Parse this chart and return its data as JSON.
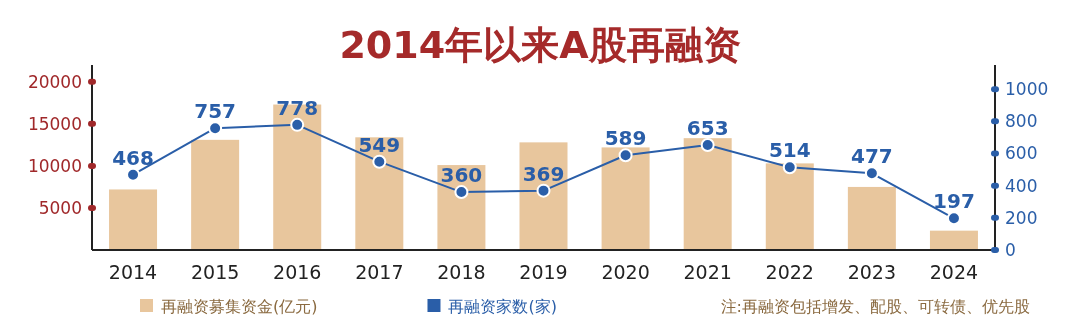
{
  "chart_data": {
    "type": "bar",
    "title": "2014年以来A股再融资",
    "categories": [
      "2014",
      "2015",
      "2016",
      "2017",
      "2018",
      "2019",
      "2020",
      "2021",
      "2022",
      "2023",
      "2024"
    ],
    "series": [
      {
        "name": "再融资募集资金(亿元)",
        "color": "#e8c69d",
        "values": [
          7200,
          13100,
          17300,
          13400,
          10100,
          12800,
          12200,
          13300,
          10300,
          7500,
          2300
        ]
      },
      {
        "name": "再融资家数(家)",
        "type": "line",
        "axis": "y2",
        "color": "#2a5ea8",
        "data_labels": true,
        "values": [
          468,
          757,
          778,
          549,
          360,
          369,
          589,
          653,
          514,
          477,
          197
        ]
      }
    ],
    "ylim": [
      0,
      22000
    ],
    "yticks": [
      5000,
      10000,
      15000,
      20000
    ],
    "y2lim": [
      0,
      1150
    ],
    "y2ticks": [
      0,
      200,
      400,
      600,
      800,
      1000
    ],
    "legend": "bottom",
    "marker": "circle",
    "annotations": [
      "注:再融资包括增发、配股、可转债、优先股"
    ]
  }
}
